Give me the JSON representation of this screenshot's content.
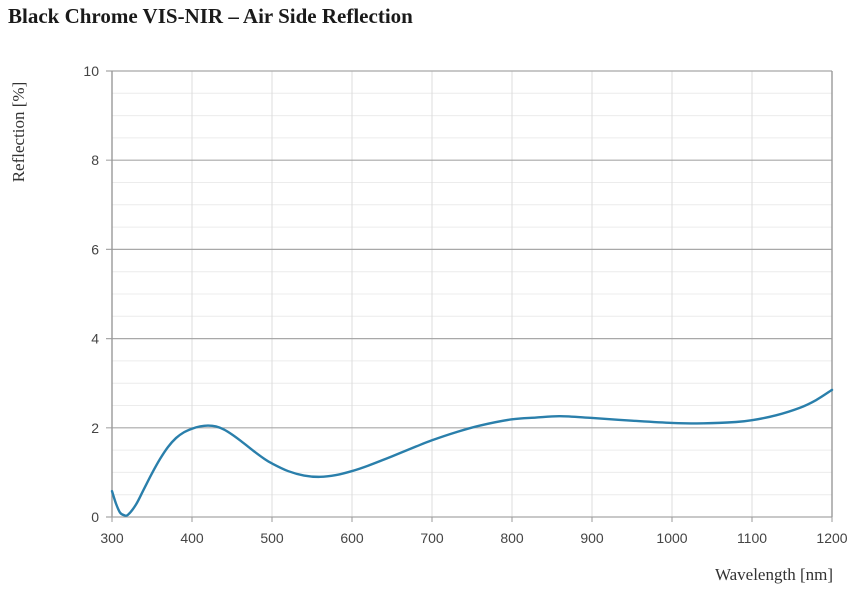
{
  "chart_data": {
    "type": "line",
    "title": "Black Chrome VIS-NIR – Air Side Reflection",
    "xlabel": "Wavelength [nm]",
    "ylabel": "Reflection [%]",
    "xlim": [
      300,
      1200
    ],
    "ylim": [
      0,
      10
    ],
    "xticks": [
      300,
      400,
      500,
      600,
      700,
      800,
      900,
      1000,
      1100,
      1200
    ],
    "yticks": [
      0,
      2,
      4,
      6,
      8,
      10
    ],
    "grid": true,
    "legend": null,
    "series": [
      {
        "name": "Air Side Reflection",
        "color": "#2a7fab",
        "x": [
          300,
          305,
          310,
          315,
          320,
          330,
          340,
          350,
          360,
          370,
          380,
          390,
          400,
          410,
          420,
          430,
          440,
          450,
          460,
          470,
          480,
          490,
          500,
          520,
          540,
          560,
          580,
          600,
          620,
          650,
          680,
          700,
          730,
          760,
          800,
          830,
          860,
          900,
          950,
          1000,
          1040,
          1080,
          1100,
          1130,
          1160,
          1180,
          1200
        ],
        "y": [
          0.58,
          0.3,
          0.1,
          0.04,
          0.05,
          0.28,
          0.63,
          0.98,
          1.3,
          1.57,
          1.77,
          1.9,
          1.98,
          2.03,
          2.05,
          2.03,
          1.96,
          1.85,
          1.72,
          1.58,
          1.44,
          1.31,
          1.2,
          1.03,
          0.93,
          0.9,
          0.94,
          1.03,
          1.15,
          1.36,
          1.58,
          1.72,
          1.9,
          2.05,
          2.19,
          2.23,
          2.26,
          2.22,
          2.16,
          2.11,
          2.1,
          2.13,
          2.17,
          2.28,
          2.45,
          2.62,
          2.85
        ]
      }
    ]
  }
}
